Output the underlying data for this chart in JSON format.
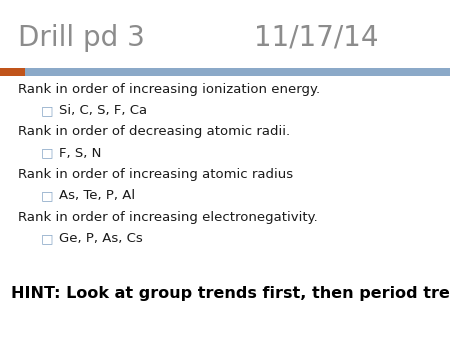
{
  "title_left": "Drill pd 3",
  "title_right": "11/17/14",
  "title_color": "#8c8c8c",
  "title_fontsize": 20,
  "accent_orange": "#c0541a",
  "accent_blue": "#8ba9c8",
  "background_color": "#ffffff",
  "bullet_color": "#8ba9c8",
  "body_lines": [
    {
      "text": "Rank in order of increasing ionization energy.",
      "indent": false
    },
    {
      "text": "Si, C, S, F, Ca",
      "indent": true
    },
    {
      "text": "Rank in order of decreasing atomic radii.",
      "indent": false
    },
    {
      "text": "F, S, N",
      "indent": true
    },
    {
      "text": "Rank in order of increasing atomic radius",
      "indent": false
    },
    {
      "text": "As, Te, P, Al",
      "indent": true
    },
    {
      "text": "Rank in order of increasing electronegativity.",
      "indent": false
    },
    {
      "text": "Ge, P, As, Cs",
      "indent": true
    }
  ],
  "hint_text": "HINT: Look at group trends first, then period trends",
  "hint_fontsize": 11.5,
  "body_fontsize": 9.5,
  "body_color": "#1a1a1a",
  "fig_width": 4.5,
  "fig_height": 3.38,
  "dpi": 100
}
